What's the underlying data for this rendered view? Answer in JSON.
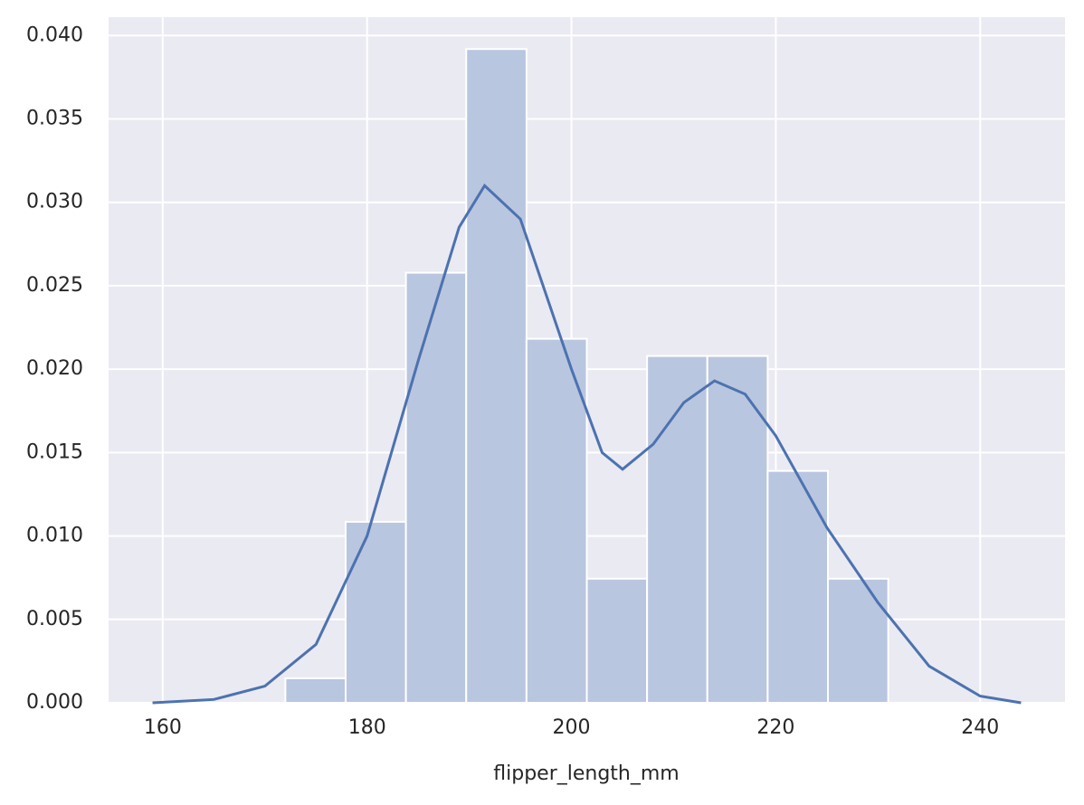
{
  "chart_data": {
    "type": "histogram",
    "x_label": "flipper_length_mm",
    "bins": [
      172,
      177.9,
      183.8,
      189.7,
      195.6,
      201.5,
      207.4,
      213.3,
      219.2,
      225.1,
      231
    ],
    "values": [
      0.00147,
      0.01085,
      0.02578,
      0.03919,
      0.02182,
      0.00744,
      0.02079,
      0.02079,
      0.0139,
      0.00744
    ],
    "color": "#b9c6df",
    "kde": {
      "color": "#4c72b0",
      "x": [
        159,
        165,
        170,
        175,
        180,
        185,
        189,
        191.5,
        195,
        200,
        203,
        205,
        208,
        211,
        214,
        217,
        220,
        225,
        230,
        235,
        240,
        244
      ],
      "values": [
        0,
        0.0002,
        0.001,
        0.0035,
        0.01,
        0.0205,
        0.0285,
        0.031,
        0.029,
        0.02,
        0.015,
        0.014,
        0.0155,
        0.018,
        0.0193,
        0.0185,
        0.016,
        0.0105,
        0.006,
        0.0022,
        0.0004,
        0
      ]
    },
    "xlim": [
      154.7,
      248.3
    ],
    "ylim": [
      0,
      0.0411
    ],
    "xticks": [
      160,
      180,
      200,
      220,
      240
    ],
    "yticks": [
      {
        "value": 0,
        "label": "0.000"
      },
      {
        "value": 0.005,
        "label": "0.005"
      },
      {
        "value": 0.01,
        "label": "0.010"
      },
      {
        "value": 0.015,
        "label": "0.015"
      },
      {
        "value": 0.02,
        "label": "0.020"
      },
      {
        "value": 0.025,
        "label": "0.025"
      },
      {
        "value": 0.03,
        "label": "0.030"
      },
      {
        "value": 0.035,
        "label": "0.035"
      },
      {
        "value": 0.04,
        "label": "0.040"
      }
    ],
    "grid": true
  }
}
